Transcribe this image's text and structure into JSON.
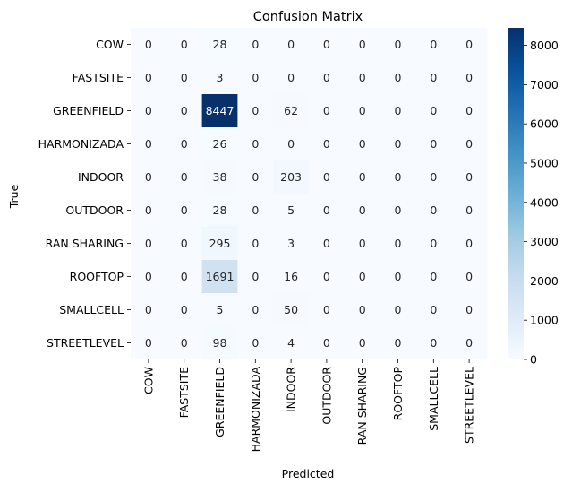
{
  "chart_data": {
    "type": "heatmap",
    "title": "Confusion Matrix",
    "xlabel": "Predicted",
    "ylabel": "True",
    "x_categories": [
      "COW",
      "FASTSITE",
      "GREENFIELD",
      "HARMONIZADA",
      "INDOOR",
      "OUTDOOR",
      "RAN SHARING",
      "ROOFTOP",
      "SMALLCELL",
      "STREETLEVEL"
    ],
    "y_categories": [
      "COW",
      "FASTSITE",
      "GREENFIELD",
      "HARMONIZADA",
      "INDOOR",
      "OUTDOOR",
      "RAN SHARING",
      "ROOFTOP",
      "SMALLCELL",
      "STREETLEVEL"
    ],
    "values": [
      [
        0,
        0,
        28,
        0,
        0,
        0,
        0,
        0,
        0,
        0
      ],
      [
        0,
        0,
        3,
        0,
        0,
        0,
        0,
        0,
        0,
        0
      ],
      [
        0,
        0,
        8447,
        0,
        62,
        0,
        0,
        0,
        0,
        0
      ],
      [
        0,
        0,
        26,
        0,
        0,
        0,
        0,
        0,
        0,
        0
      ],
      [
        0,
        0,
        38,
        0,
        203,
        0,
        0,
        0,
        0,
        0
      ],
      [
        0,
        0,
        28,
        0,
        5,
        0,
        0,
        0,
        0,
        0
      ],
      [
        0,
        0,
        295,
        0,
        3,
        0,
        0,
        0,
        0,
        0
      ],
      [
        0,
        0,
        1691,
        0,
        16,
        0,
        0,
        0,
        0,
        0
      ],
      [
        0,
        0,
        5,
        0,
        50,
        0,
        0,
        0,
        0,
        0
      ],
      [
        0,
        0,
        98,
        0,
        4,
        0,
        0,
        0,
        0,
        0
      ]
    ],
    "colormap": "Blues",
    "colorbar": {
      "min": 0,
      "max": 8447,
      "ticks": [
        0,
        1000,
        2000,
        3000,
        4000,
        5000,
        6000,
        7000,
        8000
      ]
    }
  }
}
